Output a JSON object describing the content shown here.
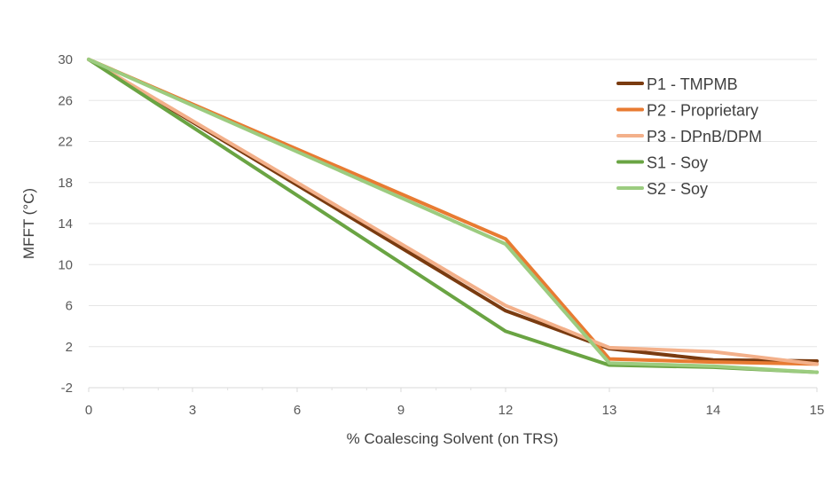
{
  "chart_data": {
    "type": "line",
    "title": "",
    "xlabel": "% Coalescing Solvent (on TRS)",
    "ylabel": "MFFT (°C)",
    "x_ticks": [
      "0",
      "3",
      "6",
      "9",
      "12",
      "13",
      "14",
      "15"
    ],
    "y_ticks": [
      "30",
      "26",
      "22",
      "18",
      "14",
      "10",
      "6",
      "2",
      "-2"
    ],
    "y_tick_values": [
      30,
      26,
      22,
      18,
      14,
      10,
      6,
      2,
      -2
    ],
    "ylim": [
      -2,
      30
    ],
    "grid": true,
    "legend_position": "top-right",
    "series": [
      {
        "name": "P1 - TMPMB",
        "color": "#7a3b10",
        "values": [
          30,
          5.5,
          1.8,
          0.7,
          0.6
        ]
      },
      {
        "name": "P2 - Proprietary",
        "color": "#e87b32",
        "values": [
          30,
          12.5,
          0.8,
          0.5,
          0.3
        ]
      },
      {
        "name": "P3 - DPnB/DPM",
        "color": "#f3b08a",
        "values": [
          30,
          6.0,
          1.9,
          1.5,
          0.3
        ]
      },
      {
        "name": "S1 - Soy",
        "color": "#6aa443",
        "values": [
          30,
          3.5,
          0.2,
          0.0,
          -0.5
        ]
      },
      {
        "name": "S2 - Soy",
        "color": "#9ccc80",
        "values": [
          30,
          12.0,
          0.4,
          0.1,
          -0.5
        ]
      }
    ],
    "x_points": [
      "0",
      "12",
      "13",
      "14",
      "15"
    ]
  }
}
